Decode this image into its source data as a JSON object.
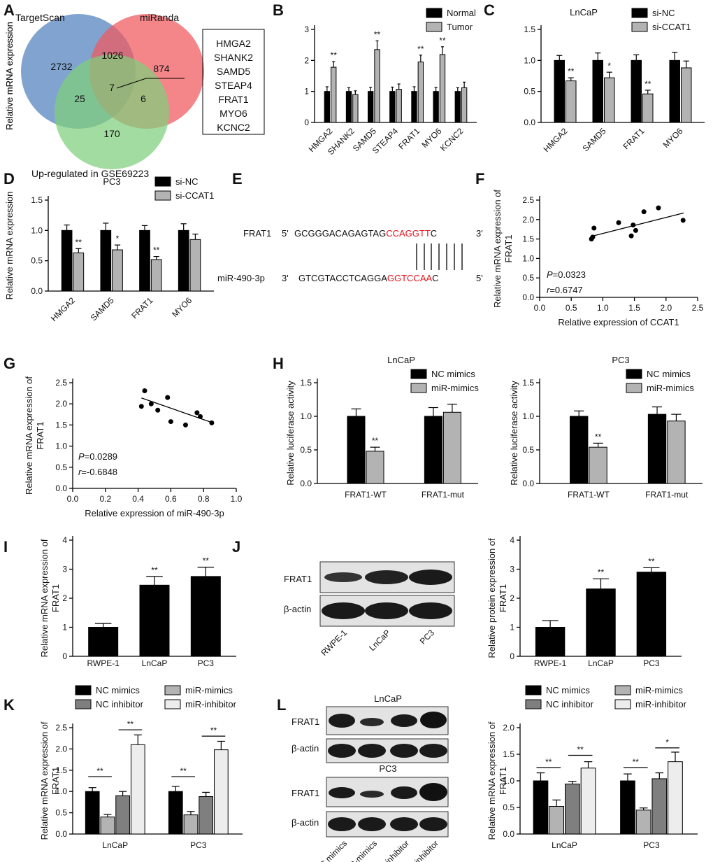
{
  "panel_labels": [
    "A",
    "B",
    "C",
    "D",
    "E",
    "F",
    "G",
    "H",
    "I",
    "J",
    "K",
    "L"
  ],
  "colors": {
    "black": "#000000",
    "grey": "#b3b3b3",
    "dark_grey": "#7f7f7f",
    "light_grey": "#ededed",
    "red": "#e8121b",
    "venn_blue": "#4f81bd",
    "venn_red": "#f0585b",
    "venn_green": "#7fcf7b"
  },
  "venn": {
    "labels": {
      "targetscan": "TargetScan",
      "miranda": "miRanda",
      "gse": "Up-regulated in GSE69223"
    },
    "counts": {
      "ts_only": "2732",
      "mir_only": "874",
      "ts_mir": "1026",
      "all": "7",
      "ts_gse": "25",
      "mir_gse": "6",
      "gse_only": "170"
    },
    "genes": [
      "HMGA2",
      "SHANK2",
      "SAMD5",
      "STEAP4",
      "FRAT1",
      "MYO6",
      "KCNC2"
    ]
  },
  "sequence": {
    "frat1_name": "FRAT1",
    "frat1_5": "5'",
    "frat1_black": "GCGGGACAGAGTAG",
    "frat1_red": "CCAGGTT",
    "frat1_tail": "C",
    "frat1_3": "3'",
    "mir_name": "miR-490-3p",
    "mir_3": "3'",
    "mir_black": "GTCGTACCTCAGGA",
    "mir_red": "GGTCCAA",
    "mir_tail": "C",
    "mir_5": "5'"
  },
  "blots": {
    "j": {
      "rows": [
        "FRAT1",
        "β-actin"
      ],
      "lanes": [
        "RWPE-1",
        "LnCaP",
        "PC3"
      ]
    },
    "l": {
      "titles": [
        "LnCaP",
        "PC3"
      ],
      "rows": [
        "FRAT1",
        "β-actin"
      ],
      "lanes": [
        "NC mimics",
        "miR-mimics",
        "NC inhibitor",
        "miR-inhibitor"
      ]
    }
  },
  "chart_data": [
    {
      "panel": "B",
      "type": "bar",
      "title": "",
      "ylabel": "Relative mRNA expression",
      "xlabel": "",
      "ylim": [
        0,
        3
      ],
      "yticks": [
        0,
        1,
        2,
        3
      ],
      "categories": [
        "HMGA2",
        "SHANK2",
        "SAMD5",
        "STEAP4",
        "FRAT1",
        "MYO6",
        "KCNC2"
      ],
      "series": [
        {
          "name": "Normal",
          "values": [
            1,
            1,
            1,
            1,
            1,
            1,
            1
          ],
          "errors": [
            0.15,
            0.12,
            0.13,
            0.14,
            0.15,
            0.13,
            0.12
          ]
        },
        {
          "name": "Tumor",
          "values": [
            1.78,
            0.9,
            2.35,
            1.07,
            1.95,
            2.19,
            1.12
          ],
          "errors": [
            0.18,
            0.12,
            0.28,
            0.17,
            0.22,
            0.25,
            0.18
          ]
        }
      ],
      "sig": [
        "**",
        "",
        "**",
        "",
        "**",
        "**",
        ""
      ]
    },
    {
      "panel": "C",
      "type": "bar",
      "title": "LnCaP",
      "ylabel": "Relative mRNA expression",
      "xlabel": "",
      "ylim": [
        0,
        1.5
      ],
      "yticks": [
        0,
        0.5,
        1.0,
        1.5
      ],
      "categories": [
        "HMGA2",
        "SAMD5",
        "FRAT1",
        "MYO6"
      ],
      "series": [
        {
          "name": "si-NC",
          "values": [
            1,
            1,
            1,
            1
          ],
          "errors": [
            0.08,
            0.12,
            0.09,
            0.13
          ]
        },
        {
          "name": "si-CCAT1",
          "values": [
            0.67,
            0.72,
            0.46,
            0.88
          ],
          "errors": [
            0.05,
            0.09,
            0.06,
            0.11
          ]
        }
      ],
      "sig": [
        "**",
        "*",
        "**",
        ""
      ]
    },
    {
      "panel": "D",
      "type": "bar",
      "title": "PC3",
      "ylabel": "Relative mRNA expression",
      "xlabel": "",
      "ylim": [
        0,
        1.5
      ],
      "yticks": [
        0,
        0.5,
        1.0,
        1.5
      ],
      "categories": [
        "HMGA2",
        "SAMD5",
        "FRAT1",
        "MYO6"
      ],
      "series": [
        {
          "name": "si-NC",
          "values": [
            1,
            1,
            1,
            1
          ],
          "errors": [
            0.09,
            0.12,
            0.08,
            0.11
          ]
        },
        {
          "name": "si-CCAT1",
          "values": [
            0.63,
            0.68,
            0.52,
            0.85
          ],
          "errors": [
            0.07,
            0.08,
            0.05,
            0.09
          ]
        }
      ],
      "sig": [
        "**",
        "*",
        "**",
        ""
      ]
    },
    {
      "panel": "F",
      "type": "scatter",
      "title": "",
      "xlabel": "Relative expression of CCAT1",
      "ylabel": "Relative mRNA expression of FRAT1",
      "xlim": [
        0,
        2.5
      ],
      "ylim": [
        0,
        2.5
      ],
      "xticks": [
        0,
        0.5,
        1.0,
        1.5,
        2.0,
        2.5
      ],
      "yticks": [
        0,
        0.5,
        1.0,
        1.5,
        2.0,
        2.5
      ],
      "x": [
        0.82,
        0.84,
        0.86,
        1.25,
        1.45,
        1.48,
        1.52,
        1.65,
        1.88,
        2.27
      ],
      "y": [
        1.5,
        1.55,
        1.78,
        1.92,
        1.58,
        1.86,
        1.72,
        2.2,
        2.3,
        1.98
      ],
      "fit": {
        "x": [
          0.8,
          2.28
        ],
        "y": [
          1.56,
          2.17
        ]
      },
      "stats": {
        "p_label": "P",
        "p_value": "=0.0323",
        "r_label": "r",
        "r_value": "=0.6747"
      }
    },
    {
      "panel": "G",
      "type": "scatter",
      "title": "",
      "xlabel": "Relative expression of miR-490-3p",
      "ylabel": "Relative mRNA expression of FRAT1",
      "xlim": [
        0,
        1.0
      ],
      "ylim": [
        0,
        2.5
      ],
      "xticks": [
        0,
        0.2,
        0.4,
        0.6,
        0.8,
        1.0
      ],
      "yticks": [
        0,
        0.5,
        1.0,
        1.5,
        2.0,
        2.5
      ],
      "x": [
        0.42,
        0.44,
        0.48,
        0.52,
        0.58,
        0.6,
        0.69,
        0.76,
        0.78,
        0.85
      ],
      "y": [
        1.94,
        2.31,
        2.0,
        1.85,
        2.15,
        1.58,
        1.5,
        1.79,
        1.7,
        1.55
      ],
      "fit": {
        "x": [
          0.42,
          0.85
        ],
        "y": [
          2.14,
          1.56
        ]
      },
      "stats": {
        "p_label": "P",
        "p_value": "=0.0289",
        "r_label": "r",
        "r_value": "=-0.6848"
      }
    },
    {
      "panel": "H",
      "type": "bar",
      "title": "LnCaP",
      "ylabel": "Relative luciferase activity",
      "xlabel": "",
      "ylim": [
        0,
        1.5
      ],
      "yticks": [
        0,
        0.5,
        1.0,
        1.5
      ],
      "categories": [
        "FRAT1-WT",
        "FRAT1-mut"
      ],
      "series": [
        {
          "name": "NC mimics",
          "values": [
            1,
            1
          ],
          "errors": [
            0.11,
            0.13
          ]
        },
        {
          "name": "miR-mimics",
          "values": [
            0.48,
            1.06
          ],
          "errors": [
            0.06,
            0.12
          ]
        }
      ],
      "sig": [
        "**",
        ""
      ]
    },
    {
      "panel": "H",
      "type": "bar",
      "title": "PC3",
      "ylabel": "Relative luciferase activity",
      "xlabel": "",
      "ylim": [
        0,
        1.5
      ],
      "yticks": [
        0,
        0.5,
        1.0,
        1.5
      ],
      "categories": [
        "FRAT1-WT",
        "FRAT1-mut"
      ],
      "series": [
        {
          "name": "NC mimics",
          "values": [
            1,
            1.03
          ],
          "errors": [
            0.08,
            0.11
          ]
        },
        {
          "name": "miR-mimics",
          "values": [
            0.54,
            0.93
          ],
          "errors": [
            0.06,
            0.1
          ]
        }
      ],
      "sig": [
        "**",
        ""
      ]
    },
    {
      "panel": "I",
      "type": "bar",
      "title": "",
      "ylabel": "Relative mRNA expression of FRAT1",
      "xlabel": "",
      "ylim": [
        0,
        4
      ],
      "yticks": [
        0,
        1,
        2,
        3,
        4
      ],
      "categories": [
        "RWPE-1",
        "LnCaP",
        "PC3"
      ],
      "series": [
        {
          "name": "",
          "values": [
            1,
            2.45,
            2.75
          ],
          "errors": [
            0.13,
            0.3,
            0.32
          ]
        }
      ],
      "sig": [
        "",
        "**",
        "**"
      ]
    },
    {
      "panel": "J",
      "type": "bar",
      "title": "",
      "ylabel": "Relative protein expression of FRAT1",
      "xlabel": "",
      "ylim": [
        0,
        4
      ],
      "yticks": [
        0,
        1,
        2,
        3,
        4
      ],
      "categories": [
        "RWPE-1",
        "LnCaP",
        "PC3"
      ],
      "series": [
        {
          "name": "",
          "values": [
            1,
            2.32,
            2.9
          ],
          "errors": [
            0.23,
            0.35,
            0.15
          ]
        }
      ],
      "sig": [
        "",
        "**",
        "**"
      ]
    },
    {
      "panel": "K",
      "type": "bar",
      "title": "",
      "ylabel": "Relative mRNA expression of FRAT1",
      "xlabel": "",
      "ylim": [
        0,
        2.5
      ],
      "yticks": [
        0,
        0.5,
        1.0,
        1.5,
        2.0,
        2.5
      ],
      "categories": [
        "LnCaP",
        "PC3"
      ],
      "series": [
        {
          "name": "NC mimics",
          "values": [
            1,
            1
          ],
          "errors": [
            0.09,
            0.12
          ]
        },
        {
          "name": "miR-mimics",
          "values": [
            0.4,
            0.45
          ],
          "errors": [
            0.06,
            0.08
          ]
        },
        {
          "name": "NC inhibitor",
          "values": [
            0.9,
            0.88
          ],
          "errors": [
            0.1,
            0.1
          ]
        },
        {
          "name": "miR-inhibitor",
          "values": [
            2.1,
            1.98
          ],
          "errors": [
            0.23,
            0.2
          ]
        }
      ],
      "brackets": [
        {
          "cat": 0,
          "from": 0,
          "to": 1,
          "label": "**",
          "y": 1.35
        },
        {
          "cat": 0,
          "from": 2,
          "to": 3,
          "label": "**",
          "y": 2.45
        },
        {
          "cat": 1,
          "from": 0,
          "to": 1,
          "label": "**",
          "y": 1.35
        },
        {
          "cat": 1,
          "from": 2,
          "to": 3,
          "label": "**",
          "y": 2.3
        }
      ]
    },
    {
      "panel": "L",
      "type": "bar",
      "title": "",
      "ylabel": "Relative mRNA expression of FRAT1",
      "xlabel": "",
      "ylim": [
        0,
        2.0
      ],
      "yticks": [
        0,
        0.5,
        1.0,
        1.5,
        2.0
      ],
      "categories": [
        "LnCaP",
        "PC3"
      ],
      "series": [
        {
          "name": "NC mimics",
          "values": [
            1,
            1
          ],
          "errors": [
            0.15,
            0.13
          ]
        },
        {
          "name": "miR-mimics",
          "values": [
            0.52,
            0.45
          ],
          "errors": [
            0.12,
            0.04
          ]
        },
        {
          "name": "NC inhibitor",
          "values": [
            0.94,
            1.04
          ],
          "errors": [
            0.05,
            0.11
          ]
        },
        {
          "name": "miR-inhibitor",
          "values": [
            1.24,
            1.36
          ],
          "errors": [
            0.12,
            0.18
          ]
        }
      ],
      "brackets": [
        {
          "cat": 0,
          "from": 0,
          "to": 1,
          "label": "**",
          "y": 1.25
        },
        {
          "cat": 0,
          "from": 2,
          "to": 3,
          "label": "**",
          "y": 1.48
        },
        {
          "cat": 1,
          "from": 0,
          "to": 1,
          "label": "**",
          "y": 1.25
        },
        {
          "cat": 1,
          "from": 2,
          "to": 3,
          "label": "*",
          "y": 1.62
        }
      ]
    }
  ]
}
